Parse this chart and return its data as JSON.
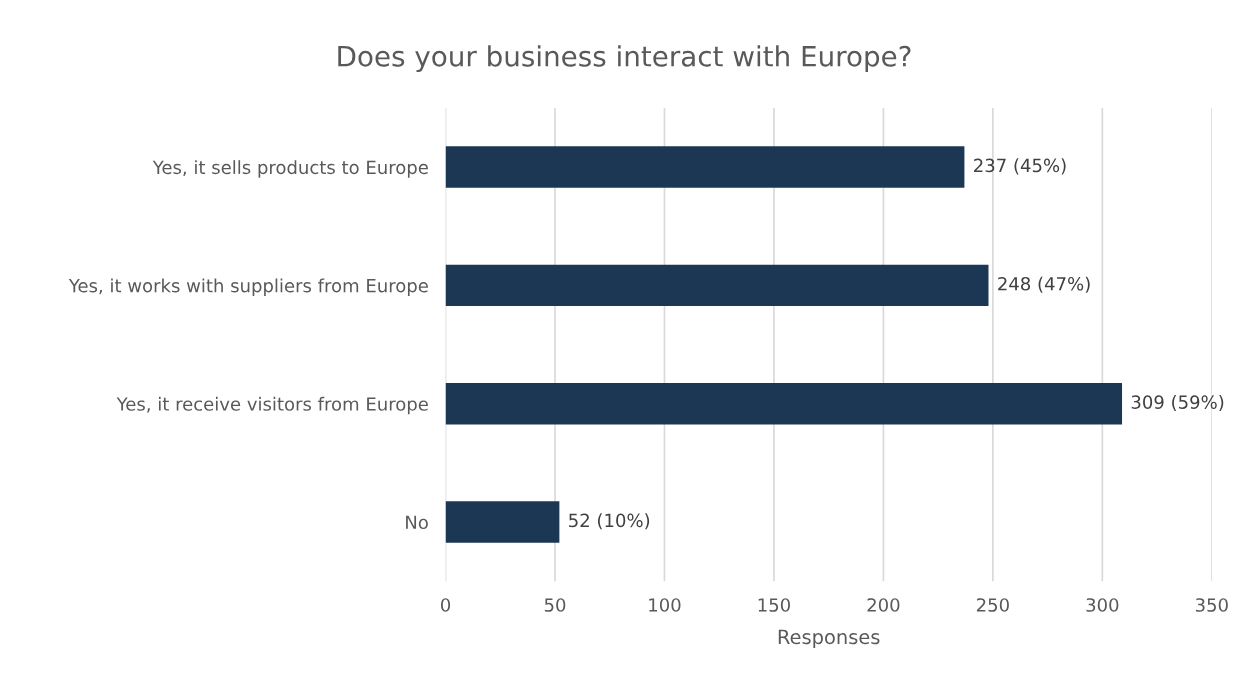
{
  "chart_data": {
    "type": "bar",
    "orientation": "horizontal",
    "title": "Does your business interact with Europe?",
    "xlabel": "Responses",
    "categories": [
      "Yes, it sells products to Europe",
      "Yes, it works with suppliers from Europe",
      "Yes, it receive visitors from Europe",
      "No"
    ],
    "values": [
      237,
      248,
      309,
      52
    ],
    "value_labels": [
      "237 (45%)",
      "248 (47%)",
      "309 (59%)",
      "52 (10%)"
    ],
    "color": "#1b3754",
    "xlim": [
      0,
      350
    ],
    "xticks": [
      0,
      50,
      100,
      150,
      200,
      250,
      300,
      350
    ],
    "grid": "x",
    "legend": false
  }
}
